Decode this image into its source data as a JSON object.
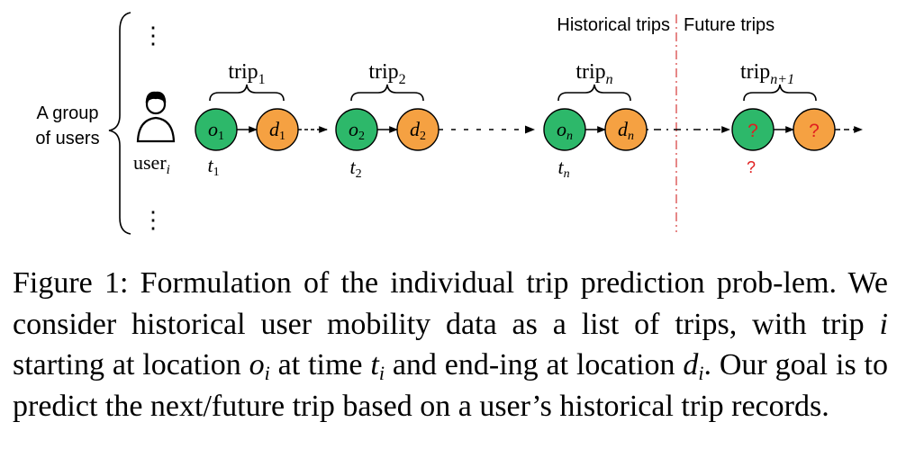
{
  "group_label": [
    "A group",
    "of users"
  ],
  "user_label": {
    "base": "user",
    "sub": "i"
  },
  "section_labels": {
    "historical": "Historical trips",
    "future": "Future trips"
  },
  "trips": [
    {
      "label": "trip",
      "sub": "1",
      "origin": {
        "base": "o",
        "sub": "1"
      },
      "destination": {
        "base": "d",
        "sub": "1"
      },
      "time": {
        "base": "t",
        "sub": "1"
      }
    },
    {
      "label": "trip",
      "sub": "2",
      "origin": {
        "base": "o",
        "sub": "2"
      },
      "destination": {
        "base": "d",
        "sub": "2"
      },
      "time": {
        "base": "t",
        "sub": "2"
      }
    },
    {
      "label": "trip",
      "sub": "n",
      "origin": {
        "base": "o",
        "sub": "n"
      },
      "destination": {
        "base": "d",
        "sub": "n"
      },
      "time": {
        "base": "t",
        "sub": "n"
      }
    }
  ],
  "future_trip": {
    "label": "trip",
    "sub": "n+1",
    "origin": "?",
    "destination": "?",
    "time": "?"
  },
  "ellipsis_vertical": "⋮",
  "colors": {
    "origin": "#2db86a",
    "destination": "#f5a142",
    "divider": "#e06a6a",
    "question": "#e02020",
    "stroke": "#000000"
  },
  "icons": {
    "user": "user-icon"
  },
  "caption": {
    "prefix": "Figure 1: Formulation of the individual trip prediction prob-lem. We consider historical user mobility data as a list of trips, with trip ",
    "var_i": "i",
    "mid1": " starting at location ",
    "o_base": "o",
    "o_sub": "i",
    "mid2": " at time ",
    "t_base": "t",
    "t_sub": "i",
    "mid3": " and end-ing at location ",
    "d_base": "d",
    "d_sub": "i",
    "suffix": ". Our goal is to predict the next/future trip based on a user’s historical trip records."
  }
}
